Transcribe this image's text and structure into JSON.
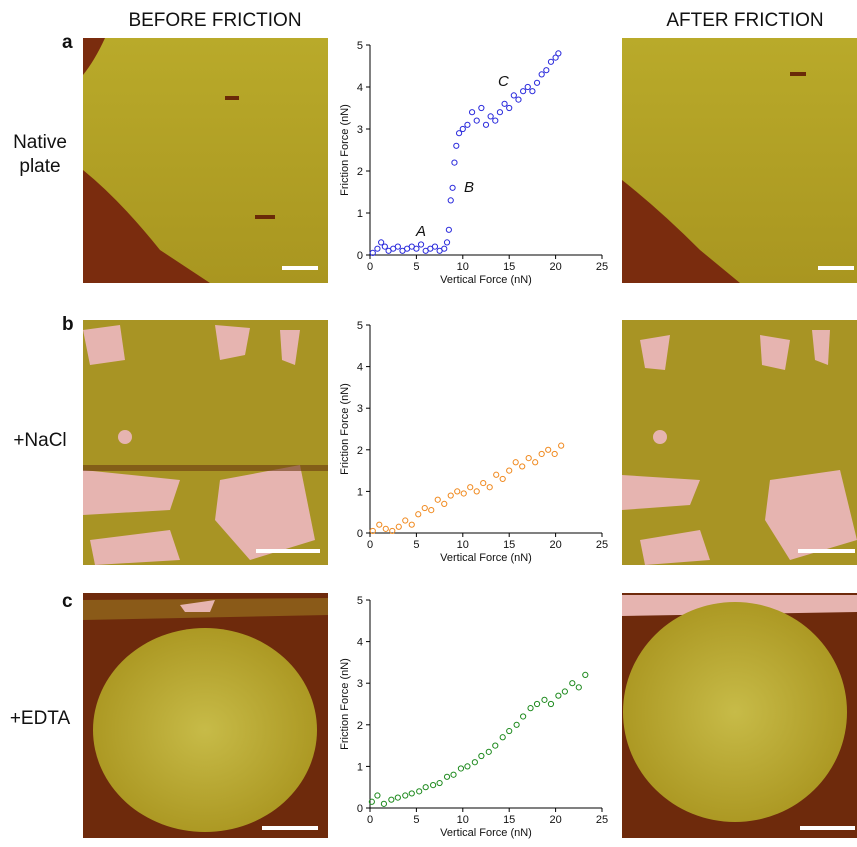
{
  "figure": {
    "column_titles": [
      "BEFORE FRICTION",
      "AFTER FRICTION"
    ],
    "rows": [
      {
        "letter": "a",
        "label_lines": [
          "Native",
          "plate"
        ]
      },
      {
        "letter": "b",
        "label_lines": [
          "+NaCl"
        ]
      },
      {
        "letter": "c",
        "label_lines": [
          "+EDTA"
        ]
      }
    ]
  },
  "chart_data": [
    {
      "type": "scatter",
      "xlabel": "Vertical Force (nN)",
      "ylabel": "Friction Force (nN)",
      "color": "#2b2bdc",
      "xlim": [
        0,
        25
      ],
      "ylim": [
        0,
        5
      ],
      "xticks": [
        0,
        5,
        10,
        15,
        20,
        25
      ],
      "yticks": [
        0,
        1,
        2,
        3,
        4,
        5
      ],
      "annotations": [
        "A",
        "B",
        "C"
      ],
      "x": [
        0.3,
        0.8,
        1.2,
        1.6,
        2.0,
        2.5,
        3.0,
        3.5,
        4.0,
        4.5,
        5.0,
        5.5,
        6.0,
        6.5,
        7.0,
        7.5,
        8.0,
        8.3,
        8.5,
        8.7,
        8.9,
        9.1,
        9.3,
        9.6,
        10.0,
        10.5,
        11.0,
        11.5,
        12.0,
        12.5,
        13.0,
        13.5,
        14.0,
        14.5,
        15.0,
        15.5,
        16.0,
        16.5,
        17.0,
        17.5,
        18.0,
        18.5,
        19.0,
        19.5,
        20.0,
        20.3
      ],
      "values": [
        0.05,
        0.15,
        0.3,
        0.2,
        0.1,
        0.15,
        0.2,
        0.1,
        0.15,
        0.2,
        0.15,
        0.25,
        0.1,
        0.15,
        0.2,
        0.1,
        0.15,
        0.3,
        0.6,
        1.3,
        1.6,
        2.2,
        2.6,
        2.9,
        3.0,
        3.1,
        3.4,
        3.2,
        3.5,
        3.1,
        3.3,
        3.2,
        3.4,
        3.6,
        3.5,
        3.8,
        3.7,
        3.9,
        4.0,
        3.9,
        4.1,
        4.3,
        4.4,
        4.6,
        4.7,
        4.8
      ]
    },
    {
      "type": "scatter",
      "xlabel": "Vertical Force (nN)",
      "ylabel": "Friction Force (nN)",
      "color": "#f08a20",
      "xlim": [
        0,
        25
      ],
      "ylim": [
        0,
        5
      ],
      "xticks": [
        0,
        5,
        10,
        15,
        20,
        25
      ],
      "yticks": [
        0,
        1,
        2,
        3,
        4,
        5
      ],
      "x": [
        0.3,
        1.0,
        1.7,
        2.4,
        3.1,
        3.8,
        4.5,
        5.2,
        5.9,
        6.6,
        7.3,
        8.0,
        8.7,
        9.4,
        10.1,
        10.8,
        11.5,
        12.2,
        12.9,
        13.6,
        14.3,
        15.0,
        15.7,
        16.4,
        17.1,
        17.8,
        18.5,
        19.2,
        19.9,
        20.6
      ],
      "values": [
        0.05,
        0.2,
        0.1,
        0.05,
        0.15,
        0.3,
        0.2,
        0.45,
        0.6,
        0.55,
        0.8,
        0.7,
        0.9,
        1.0,
        0.95,
        1.1,
        1.0,
        1.2,
        1.1,
        1.4,
        1.3,
        1.5,
        1.7,
        1.6,
        1.8,
        1.7,
        1.9,
        2.0,
        1.9,
        2.1
      ]
    },
    {
      "type": "scatter",
      "xlabel": "Vertical Force (nN)",
      "ylabel": "Friction Force (nN)",
      "color": "#1e8a1e",
      "xlim": [
        0,
        25
      ],
      "ylim": [
        0,
        5
      ],
      "xticks": [
        0,
        5,
        10,
        15,
        20,
        25
      ],
      "yticks": [
        0,
        1,
        2,
        3,
        4,
        5
      ],
      "x": [
        0.2,
        0.8,
        1.5,
        2.3,
        3.0,
        3.8,
        4.5,
        5.3,
        6.0,
        6.8,
        7.5,
        8.3,
        9.0,
        9.8,
        10.5,
        11.3,
        12.0,
        12.8,
        13.5,
        14.3,
        15.0,
        15.8,
        16.5,
        17.3,
        18.0,
        18.8,
        19.5,
        20.3,
        21.0,
        21.8,
        22.5,
        23.2
      ],
      "values": [
        0.15,
        0.3,
        0.1,
        0.2,
        0.25,
        0.3,
        0.35,
        0.4,
        0.5,
        0.55,
        0.6,
        0.75,
        0.8,
        0.95,
        1.0,
        1.1,
        1.25,
        1.35,
        1.5,
        1.7,
        1.85,
        2.0,
        2.2,
        2.4,
        2.5,
        2.6,
        2.5,
        2.7,
        2.8,
        3.0,
        2.9,
        3.2
      ]
    }
  ]
}
